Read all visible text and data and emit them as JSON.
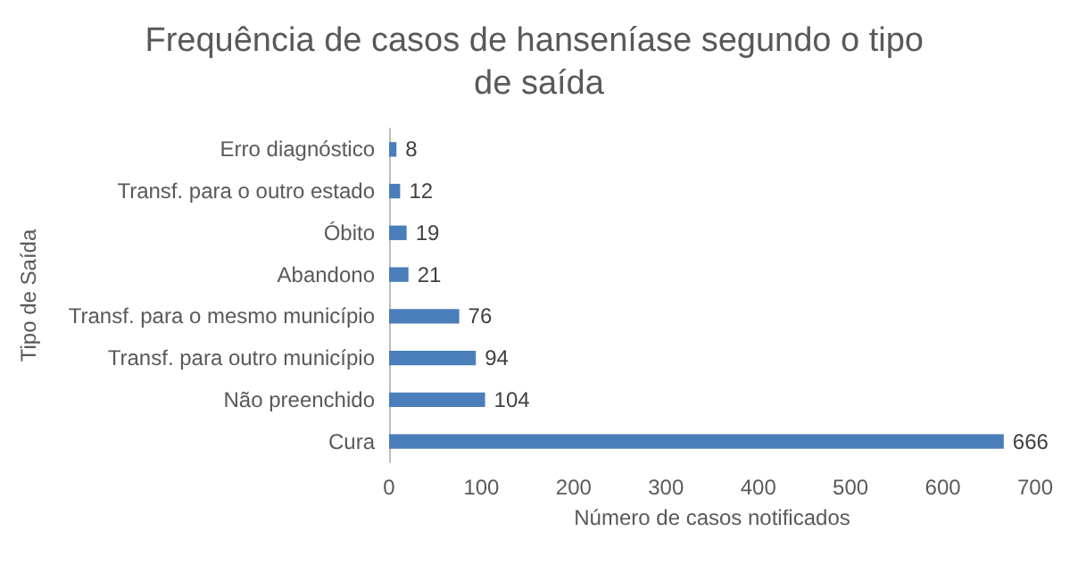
{
  "chart_data": {
    "type": "bar",
    "orientation": "horizontal",
    "title": "Frequência de casos de hanseníase segundo o tipo de saída",
    "xlabel": "Número de casos notificados",
    "ylabel": "Tipo de Saída",
    "categories": [
      "Erro diagnóstico",
      "Transf. para o outro estado",
      "Óbito",
      "Abandono",
      "Transf. para o mesmo município",
      "Transf. para outro município",
      "Não preenchido",
      "Cura"
    ],
    "values": [
      8,
      12,
      19,
      21,
      76,
      94,
      104,
      666
    ],
    "color": "#4a7ebb",
    "xlim": [
      0,
      700
    ],
    "xticks": [
      0,
      100,
      200,
      300,
      400,
      500,
      600,
      700
    ],
    "data_labels": true
  }
}
